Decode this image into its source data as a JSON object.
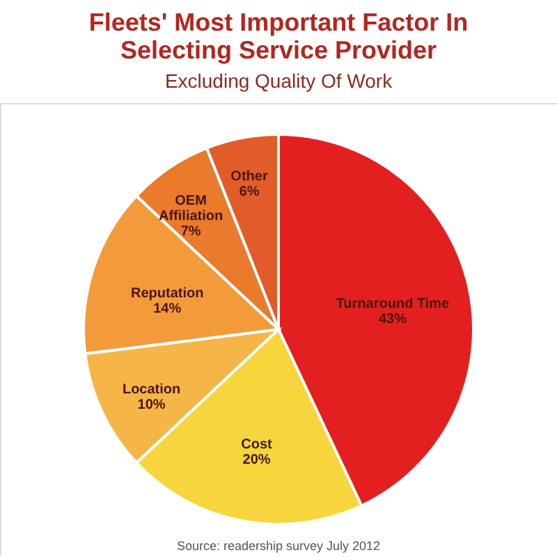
{
  "chart_data": {
    "type": "pie",
    "title": "Fleets' Most Important Factor In Selecting Service Provider",
    "subtitle": "Excluding Quality Of Work",
    "categories": [
      "Turnaround Time",
      "Cost",
      "Location",
      "Reputation",
      "OEM Affiliation",
      "Other"
    ],
    "values": [
      43,
      20,
      10,
      14,
      7,
      6
    ],
    "value_labels": [
      "43%",
      "20%",
      "10%",
      "14%",
      "7%",
      "6%"
    ],
    "colors": [
      "#e3201f",
      "#f7d53c",
      "#f6b547",
      "#f39a3b",
      "#ea7a2c",
      "#e25c2a"
    ],
    "legend": false,
    "annotations": [
      "Source: readership survey July 2012"
    ]
  }
}
